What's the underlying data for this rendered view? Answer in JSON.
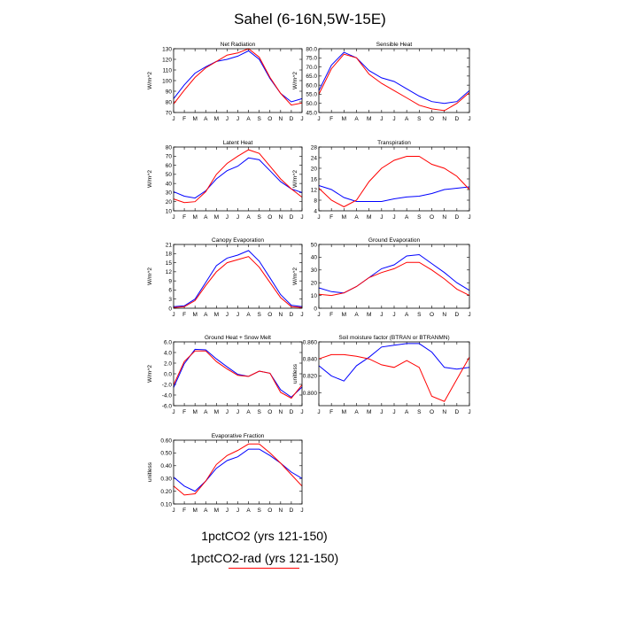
{
  "title": "Sahel (6-16N,5W-15E)",
  "colors": {
    "series1": "#0000ff",
    "series2": "#ff0000",
    "frame": "#000000"
  },
  "legend": {
    "series1_label": "1pctCO2 (yrs 121-150)",
    "series2_label": "1pctCO2-rad (yrs 121-150)",
    "swatch_shown": "series2"
  },
  "chart_data": [
    {
      "type": "line",
      "title": "Net Radiation",
      "ylabel": "W/m^2",
      "x": [
        "J",
        "F",
        "M",
        "A",
        "M",
        "J",
        "J",
        "A",
        "S",
        "O",
        "N",
        "D",
        "J"
      ],
      "ylim": [
        70,
        130
      ],
      "yticks": [
        70,
        80,
        90,
        100,
        110,
        120,
        130
      ],
      "ytick_labels": [
        "70",
        "80",
        "90",
        "100",
        "110",
        "120",
        "130"
      ],
      "series": [
        {
          "values": [
            83,
            96,
            107,
            113,
            118,
            120,
            123,
            128,
            120,
            102,
            88,
            80,
            83
          ]
        },
        {
          "values": [
            78,
            91,
            103,
            112,
            118,
            124,
            126,
            130,
            122,
            103,
            88,
            77,
            79
          ]
        }
      ]
    },
    {
      "type": "line",
      "title": "Sensible Heat",
      "ylabel": "W/m^2",
      "x": [
        "J",
        "F",
        "M",
        "A",
        "M",
        "J",
        "J",
        "A",
        "S",
        "O",
        "N",
        "D",
        "J"
      ],
      "ylim": [
        45,
        80
      ],
      "yticks": [
        45,
        50,
        55,
        60,
        65,
        70,
        75,
        80
      ],
      "ytick_labels": [
        "45.0",
        "50.0",
        "55.0",
        "60.0",
        "65.0",
        "70.0",
        "75.0",
        "80.0"
      ],
      "series": [
        {
          "values": [
            57,
            71,
            78,
            75,
            68,
            64,
            62,
            58,
            54,
            51,
            50,
            51,
            57
          ]
        },
        {
          "values": [
            55,
            69,
            77,
            75,
            66,
            61,
            57,
            53,
            49,
            47,
            46,
            50,
            56
          ]
        }
      ]
    },
    {
      "type": "line",
      "title": "Latent Heat",
      "ylabel": "W/m^2",
      "x": [
        "J",
        "F",
        "M",
        "A",
        "M",
        "J",
        "J",
        "A",
        "S",
        "O",
        "N",
        "D",
        "J"
      ],
      "ylim": [
        10,
        80
      ],
      "yticks": [
        10,
        20,
        30,
        40,
        50,
        60,
        70,
        80
      ],
      "ytick_labels": [
        "10",
        "20",
        "30",
        "40",
        "50",
        "60",
        "70",
        "80"
      ],
      "series": [
        {
          "values": [
            31,
            26,
            24,
            32,
            45,
            54,
            59,
            68,
            66,
            54,
            42,
            34,
            30
          ]
        },
        {
          "values": [
            23,
            19,
            20,
            31,
            50,
            62,
            70,
            77,
            73,
            59,
            45,
            34,
            25
          ]
        }
      ]
    },
    {
      "type": "line",
      "title": "Transpiration",
      "ylabel": "W/m^2",
      "x": [
        "J",
        "F",
        "M",
        "A",
        "M",
        "J",
        "J",
        "A",
        "S",
        "O",
        "N",
        "D",
        "J"
      ],
      "ylim": [
        4,
        28
      ],
      "yticks": [
        4,
        8,
        12,
        16,
        20,
        24,
        28
      ],
      "ytick_labels": [
        "4",
        "8",
        "12",
        "16",
        "20",
        "24",
        "28"
      ],
      "series": [
        {
          "values": [
            13.5,
            12,
            9,
            7.5,
            7.5,
            7.5,
            8.5,
            9.2,
            9.5,
            10.5,
            12,
            12.5,
            13
          ]
        },
        {
          "values": [
            12.5,
            8,
            5.5,
            8,
            15,
            20,
            23,
            24.5,
            24.5,
            21.5,
            20,
            17,
            12
          ]
        }
      ]
    },
    {
      "type": "line",
      "title": "Canopy Evaporation",
      "ylabel": "W/m^2",
      "x": [
        "J",
        "F",
        "M",
        "A",
        "M",
        "J",
        "J",
        "A",
        "S",
        "O",
        "N",
        "D",
        "J"
      ],
      "ylim": [
        0,
        21
      ],
      "yticks": [
        0,
        3,
        6,
        9,
        12,
        15,
        18,
        21
      ],
      "ytick_labels": [
        "0",
        "3",
        "6",
        "9",
        "12",
        "15",
        "18",
        "21"
      ],
      "series": [
        {
          "values": [
            0.5,
            0.8,
            3,
            8.5,
            14,
            16.5,
            17.5,
            19,
            15.5,
            10,
            4.5,
            1,
            0.5
          ]
        },
        {
          "values": [
            0.2,
            0.5,
            2.5,
            7.5,
            12,
            15,
            16,
            17,
            13.5,
            8.5,
            3.5,
            0.5,
            0.2
          ]
        }
      ]
    },
    {
      "type": "line",
      "title": "Ground Evaporation",
      "ylabel": "W/m^2",
      "x": [
        "J",
        "F",
        "M",
        "A",
        "M",
        "J",
        "J",
        "A",
        "S",
        "O",
        "N",
        "D",
        "J"
      ],
      "ylim": [
        0,
        50
      ],
      "yticks": [
        0,
        10,
        20,
        30,
        40,
        50
      ],
      "ytick_labels": [
        "0",
        "10",
        "20",
        "30",
        "40",
        "50"
      ],
      "series": [
        {
          "values": [
            16,
            13,
            12,
            17,
            24,
            31,
            34,
            41,
            42,
            35,
            28,
            20,
            14
          ]
        },
        {
          "values": [
            11,
            10,
            12,
            17,
            24,
            28,
            31,
            36,
            36,
            30,
            23,
            15,
            10
          ]
        }
      ]
    },
    {
      "type": "line",
      "title": "Ground Heat + Snow Melt",
      "ylabel": "W/m^2",
      "x": [
        "J",
        "F",
        "M",
        "A",
        "M",
        "J",
        "J",
        "A",
        "S",
        "O",
        "N",
        "D",
        "J"
      ],
      "ylim": [
        -6,
        6
      ],
      "yticks": [
        -6,
        -4,
        -2,
        0,
        2,
        4,
        6
      ],
      "ytick_labels": [
        "-6.0",
        "-4.0",
        "-2.0",
        "0.0",
        "2.0",
        "4.0",
        "6.0"
      ],
      "series": [
        {
          "values": [
            -2.6,
            1.9,
            4.6,
            4.5,
            2.8,
            1.3,
            -0.1,
            -0.5,
            0.5,
            0.1,
            -3.0,
            -4.4,
            -2.5
          ]
        },
        {
          "values": [
            -2.1,
            2.3,
            4.3,
            4.3,
            2.3,
            0.9,
            -0.3,
            -0.5,
            0.5,
            0.1,
            -3.5,
            -4.6,
            -2.1
          ]
        }
      ]
    },
    {
      "type": "line",
      "title": "Soil moisture factor (BTRAN or BTRANMN)",
      "ylabel": "unitless",
      "x": [
        "J",
        "F",
        "M",
        "A",
        "M",
        "J",
        "J",
        "A",
        "S",
        "O",
        "N",
        "D",
        "J"
      ],
      "ylim": [
        0.785,
        0.86
      ],
      "yticks": [
        0.8,
        0.82,
        0.84,
        0.86
      ],
      "ytick_labels": [
        "0.800",
        "0.820",
        "0.840",
        "0.860"
      ],
      "series": [
        {
          "values": [
            0.832,
            0.82,
            0.814,
            0.832,
            0.842,
            0.854,
            0.856,
            0.858,
            0.858,
            0.848,
            0.83,
            0.828,
            0.83
          ]
        },
        {
          "values": [
            0.84,
            0.845,
            0.845,
            0.843,
            0.84,
            0.833,
            0.83,
            0.838,
            0.83,
            0.796,
            0.79,
            0.816,
            0.842
          ]
        }
      ]
    },
    {
      "type": "line",
      "title": "Evaporative Fraction",
      "ylabel": "unitless",
      "x": [
        "J",
        "F",
        "M",
        "A",
        "M",
        "J",
        "J",
        "A",
        "S",
        "O",
        "N",
        "D",
        "J"
      ],
      "ylim": [
        0.1,
        0.6
      ],
      "yticks": [
        0.1,
        0.2,
        0.3,
        0.4,
        0.5,
        0.6
      ],
      "ytick_labels": [
        "0.10",
        "0.20",
        "0.30",
        "0.40",
        "0.50",
        "0.60"
      ],
      "series": [
        {
          "values": [
            0.31,
            0.24,
            0.2,
            0.28,
            0.38,
            0.44,
            0.47,
            0.53,
            0.53,
            0.48,
            0.42,
            0.35,
            0.3
          ]
        },
        {
          "values": [
            0.24,
            0.17,
            0.18,
            0.28,
            0.41,
            0.48,
            0.52,
            0.57,
            0.57,
            0.5,
            0.42,
            0.33,
            0.24
          ]
        }
      ]
    }
  ]
}
